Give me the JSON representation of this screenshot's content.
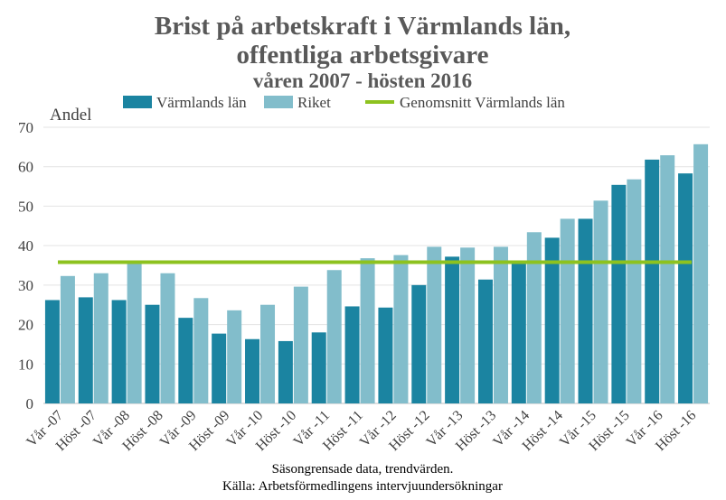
{
  "chart_data": {
    "type": "bar",
    "title": "Brist på arbetskraft i Värmlands län,",
    "title_line2": "offentliga arbetsgivare",
    "subtitle": "våren 2007 - hösten 2016",
    "ylabel": "Andel",
    "ylim": [
      0,
      70
    ],
    "yticks": [
      0,
      10,
      20,
      30,
      40,
      50,
      60,
      70
    ],
    "grid": true,
    "legend_position": "top",
    "categories": [
      "Vår -07",
      "Höst -07",
      "Vår -08",
      "Höst -08",
      "Vår -09",
      "Höst -09",
      "Vår -10",
      "Höst -10",
      "Vår -11",
      "Höst -11",
      "Vår -12",
      "Höst -12",
      "Vår -13",
      "Höst -13",
      "Vår -14",
      "Höst -14",
      "Vår -15",
      "Höst -15",
      "Vår -16",
      "Höst -16"
    ],
    "series": [
      {
        "name": "Värmlands län",
        "color": "#1B84A1",
        "values": [
          26.2,
          26.9,
          26.2,
          25.0,
          21.7,
          17.7,
          16.3,
          15.8,
          18.0,
          24.6,
          24.3,
          30.0,
          37.2,
          31.4,
          36.0,
          42.0,
          46.8,
          55.4,
          61.8,
          58.3
        ]
      },
      {
        "name": "Riket",
        "color": "#82BDCB",
        "values": [
          32.3,
          33.0,
          36.0,
          33.0,
          26.7,
          23.6,
          25.0,
          29.6,
          33.8,
          36.8,
          37.6,
          39.7,
          39.5,
          39.7,
          43.4,
          46.8,
          51.4,
          56.8,
          62.9,
          65.7
        ]
      }
    ],
    "reference_line": {
      "name": "Genomsnitt Värmlands län",
      "color": "#8DC21F",
      "value": 35.8
    }
  },
  "footnotes": {
    "line1": "Säsongrensade data, trendvärden.",
    "line2": "Källa: Arbetsförmedlingens intervjuundersökningar"
  }
}
